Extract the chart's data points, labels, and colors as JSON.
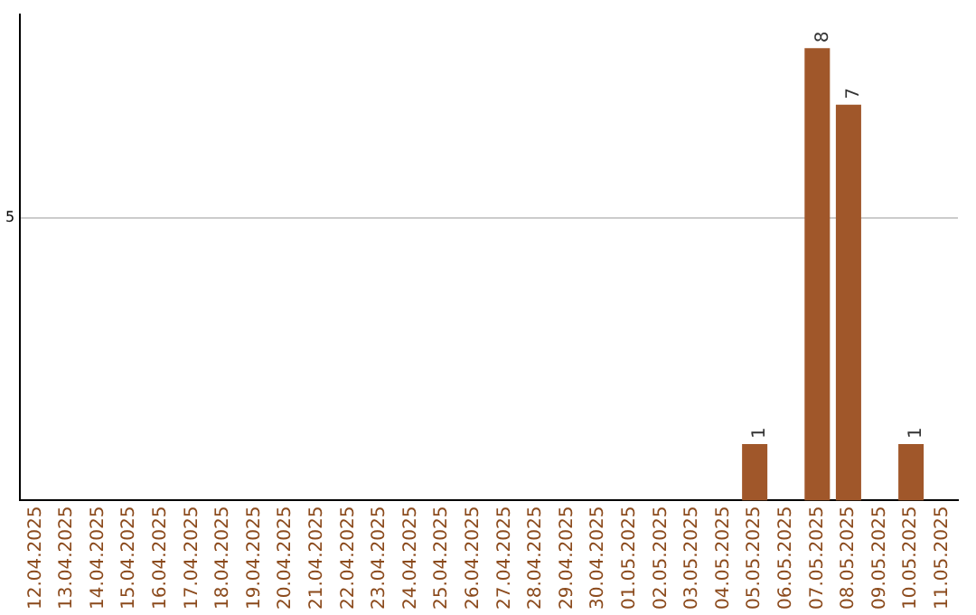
{
  "chart_data": {
    "type": "bar",
    "categories": [
      "12.04.2025",
      "13.04.2025",
      "14.04.2025",
      "15.04.2025",
      "16.04.2025",
      "17.04.2025",
      "18.04.2025",
      "19.04.2025",
      "20.04.2025",
      "21.04.2025",
      "22.04.2025",
      "23.04.2025",
      "24.04.2025",
      "25.04.2025",
      "26.04.2025",
      "27.04.2025",
      "28.04.2025",
      "29.04.2025",
      "30.04.2025",
      "01.05.2025",
      "02.05.2025",
      "03.05.2025",
      "04.05.2025",
      "05.05.2025",
      "06.05.2025",
      "07.05.2025",
      "08.05.2025",
      "09.05.2025",
      "10.05.2025",
      "11.05.2025"
    ],
    "values": [
      null,
      null,
      null,
      null,
      null,
      null,
      null,
      null,
      null,
      null,
      null,
      null,
      null,
      null,
      null,
      null,
      null,
      null,
      null,
      null,
      null,
      null,
      null,
      1,
      null,
      8,
      7,
      null,
      1,
      null
    ],
    "color": "#a0572a",
    "ylim": [
      0,
      8.6
    ],
    "yticks": [
      5
    ],
    "grid": "y",
    "legend": false,
    "data_labels": true
  }
}
